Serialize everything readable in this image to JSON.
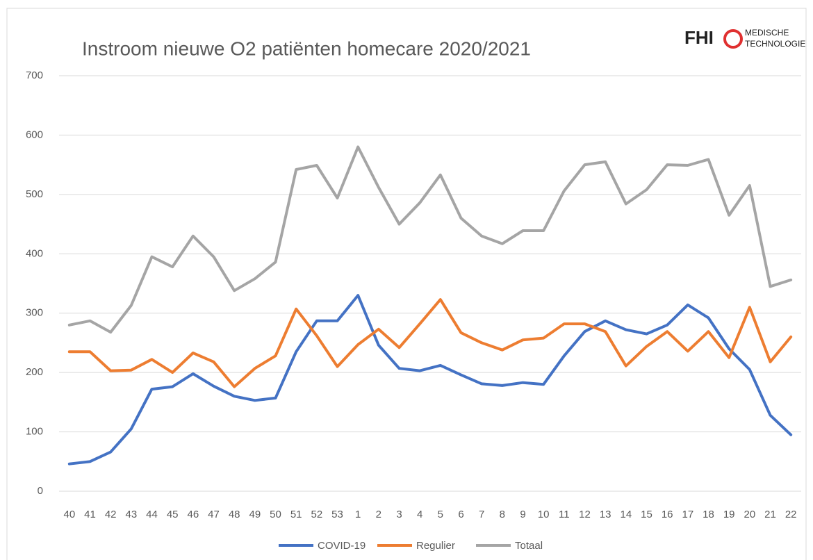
{
  "chart_data": {
    "type": "line",
    "title": "Instroom nieuwe O2 patiënten homecare 2020/2021",
    "categories": [
      "40",
      "41",
      "42",
      "43",
      "44",
      "45",
      "46",
      "47",
      "48",
      "49",
      "50",
      "51",
      "52",
      "53",
      "1",
      "2",
      "3",
      "4",
      "5",
      "6",
      "7",
      "8",
      "9",
      "10",
      "11",
      "12",
      "13",
      "14",
      "15",
      "16",
      "17",
      "18",
      "19",
      "20",
      "21",
      "22"
    ],
    "series": [
      {
        "name": "COVID-19",
        "color": "#4472c4",
        "values": [
          46,
          50,
          66,
          105,
          172,
          176,
          198,
          177,
          160,
          153,
          157,
          235,
          287,
          287,
          330,
          246,
          207,
          203,
          212,
          196,
          181,
          178,
          183,
          180,
          228,
          269,
          287,
          272,
          265,
          280,
          314,
          292,
          240,
          205,
          128,
          95
        ]
      },
      {
        "name": "Regulier",
        "color": "#ed7d31",
        "values": [
          235,
          235,
          203,
          204,
          222,
          200,
          233,
          218,
          176,
          207,
          228,
          307,
          262,
          210,
          247,
          273,
          242,
          282,
          323,
          267,
          250,
          238,
          255,
          258,
          282,
          282,
          269,
          211,
          244,
          269,
          236,
          269,
          225,
          310,
          218,
          260
        ]
      },
      {
        "name": "Totaal",
        "color": "#a5a5a5",
        "values": [
          280,
          287,
          268,
          313,
          395,
          378,
          430,
          395,
          338,
          358,
          386,
          542,
          549,
          494,
          580,
          512,
          450,
          486,
          533,
          460,
          430,
          417,
          439,
          439,
          506,
          550,
          555,
          484,
          508,
          550,
          549,
          559,
          465,
          515,
          345,
          356
        ]
      }
    ],
    "ylim": [
      0,
      700
    ],
    "yticks": [
      0,
      100,
      200,
      300,
      400,
      500,
      600,
      700
    ],
    "grid": true,
    "legend": "bottom"
  },
  "logo": {
    "name": "FHI",
    "line1": "MEDISCHE",
    "line2": "TECHNOLOGIE"
  }
}
